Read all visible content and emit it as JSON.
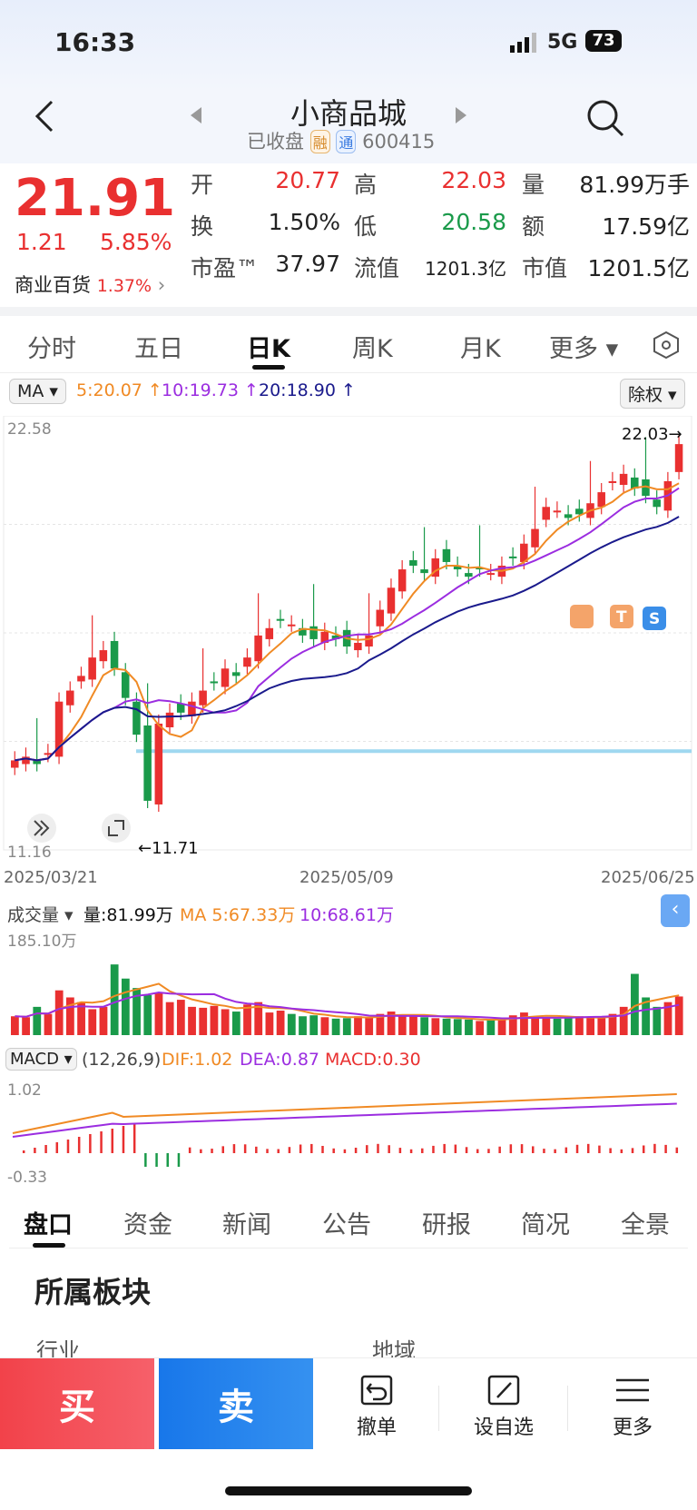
{
  "status": {
    "time": "16:33",
    "network": "5G",
    "battery": "73"
  },
  "header": {
    "title": "小商品城",
    "state": "已收盘",
    "badge_rong": "融",
    "badge_tong": "通",
    "code": "600415"
  },
  "quote": {
    "price": "21.91",
    "change": "1.21",
    "change_pct": "5.85%",
    "sector_name": "商业百货",
    "sector_pct": "1.37%",
    "labels": {
      "open": "开",
      "high": "高",
      "volume": "量",
      "turnover": "换",
      "low": "低",
      "amount": "额",
      "pe": "市盈™",
      "float_cap": "流值",
      "mkt_cap": "市值"
    },
    "open": "20.77",
    "high": "22.03",
    "volume": "81.99万手",
    "turnover": "1.50%",
    "low": "20.58",
    "amount": "17.59亿",
    "pe": "37.97",
    "float_cap": "1201.3亿",
    "mkt_cap": "1201.5亿"
  },
  "chart_tabs": [
    "分时",
    "五日",
    "日K",
    "周K",
    "月K",
    "更多 ▾"
  ],
  "ma_bar": {
    "selector": "MA ▾",
    "ma5": "5:20.07 ↑",
    "ma10": "10:19.73 ↑",
    "ma20": "20:18.90 ↑",
    "adjust": "除权 ▾"
  },
  "kline": {
    "ymax_label": "22.58",
    "ymin_label": "11.16",
    "high_mark": "22.03→",
    "low_mark": "←11.71",
    "dates": [
      "2025/03/21",
      "2025/05/09",
      "2025/06/25"
    ],
    "signal_s": "S",
    "signal_t": "T"
  },
  "volume": {
    "selector": "成交量 ▾",
    "vol": "量:81.99万",
    "ma5": "MA 5:67.33万",
    "ma10": "10:68.61万",
    "ymax": "185.10万"
  },
  "macd": {
    "selector": "MACD ▾",
    "params": "(12,26,9)",
    "dif": "DIF:1.02",
    "dea": "DEA:0.87",
    "macd": "MACD:0.30",
    "ymax": "1.02",
    "ymin": "-0.33"
  },
  "bottom_tabs": [
    "盘口",
    "资金",
    "新闻",
    "公告",
    "研报",
    "简况",
    "全景"
  ],
  "section": {
    "title": "所属板块",
    "col1": "行业",
    "col2": "地域"
  },
  "actions": {
    "buy": "买",
    "sell": "卖",
    "cancel": "撤单",
    "watch": "设自选",
    "more": "更多"
  },
  "colors": {
    "up": "#e93030",
    "down": "#1a9a4a",
    "ma5": "#f08a24",
    "ma10": "#9b2de0",
    "ma20": "#1a1a8c",
    "support": "#9fd8f0"
  },
  "chart_data": {
    "type": "candlestick",
    "x_labels": [
      "2025/03/21",
      "2025/05/09",
      "2025/06/25"
    ],
    "ylim": [
      11.16,
      22.58
    ],
    "last": {
      "open": 20.77,
      "high": 22.03,
      "low": 20.58,
      "close": 21.91
    },
    "period_low": 11.71,
    "ma": {
      "ma5": 20.07,
      "ma10": 19.73,
      "ma20": 18.9
    },
    "volume_last": 81.99,
    "volume_ma5": 67.33,
    "volume_ma10": 68.61,
    "volume_ymax": 185.1,
    "macd": {
      "dif": 1.02,
      "dea": 0.87,
      "macd": 0.3
    }
  }
}
